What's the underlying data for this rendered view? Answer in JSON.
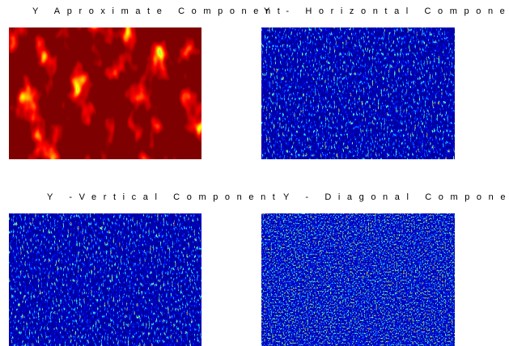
{
  "panels": [
    {
      "title": "Y Aproximate Component"
    },
    {
      "title": "Y - Horizontal Component"
    },
    {
      "title": "Y -Vertical Component"
    },
    {
      "title": "Y - Diagonal Component"
    }
  ]
}
